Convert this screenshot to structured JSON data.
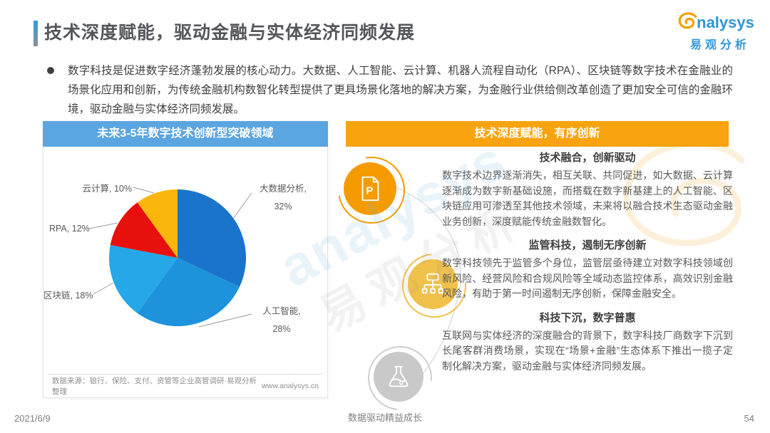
{
  "page": {
    "title": "技术深度赋能，驱动金融与实体经济同频发展",
    "bullet": "数字科技是促进数字经济蓬勃发展的核心动力。大数据、人工智能、云计算、机器人流程自动化（RPA）、区块链等数字技术在金融业的场景化应用和创新，为传统金融机构数智化转型提供了更具场景化落地的解决方案，为金融行业供给侧改革创造了更加安全可信的金融环境，驱动金融与实体经济同频发展。",
    "footer": {
      "date": "2021/6/9",
      "slogan": "数据驱动精益成长",
      "page_number": "54"
    }
  },
  "logo": {
    "brand_rest": "nalysys",
    "brand_cn": "易观分析"
  },
  "left_panel": {
    "header": "未来3-5年数字技术创新型突破领域",
    "source": "数据来源：银行、保险、支付、资管等企业高管调研·易观分析整理",
    "website": "www.analysys.cn"
  },
  "chart_data": {
    "type": "pie",
    "title": "未来3-5年数字技术创新型突破领域",
    "labels": [
      "大数据分析",
      "人工智能",
      "区块链",
      "RPA",
      "云计算"
    ],
    "values": [
      32,
      28,
      18,
      12,
      10
    ],
    "unit": "%",
    "colors": [
      "#1b74cc",
      "#1e93dc",
      "#25a7e8",
      "#e8100c",
      "#fbb60b"
    ],
    "legend_position": "outside-labels",
    "start_angle_deg": 0,
    "direction": "clockwise"
  },
  "right_panel": {
    "header": "技术深度赋能，有序创新",
    "sections": [
      {
        "icon": "document-p-icon",
        "heading": "技术融合，创新驱动",
        "body": "数字技术边界逐渐消失，相互关联、共同促进，如大数据、云计算逐渐成为数字新基础设施，而搭载在数字新基建上的人工智能、区块链应用可渗透至其他技术领域，未来将以融合技术生态驱动金融业务创新，深度赋能传统金融数智化。"
      },
      {
        "icon": "org-chart-icon",
        "heading": "监管科技，遏制无序创新",
        "body": "数字科技领先于监管多个身位，监管层亟待建立对数字科技领域创新风险、经营风险和合规风险等全域动态监控体系，高效识别金融风险，有助于第一时间遏制无序创新，保障金融安全。"
      },
      {
        "icon": "flask-icon",
        "heading": "科技下沉，数字普惠",
        "body": "互联网与实体经济的深度融合的背景下，数字科技厂商数字下沉到长尾客群消费场景，实现在“场景+金融”生态体系下推出一揽子定制化解决方案，驱动金融与实体经济同频发展。"
      }
    ]
  },
  "watermark": {
    "text_en": "analysys",
    "text_cn": "易观分析"
  },
  "colors": {
    "left_header_bg": "#5ba5e0",
    "right_header_bg": "#f8a30f",
    "icon1_bg": "#f59b00",
    "icon2_bg": "#f0c14b",
    "icon3_bg": "#c9c9c9",
    "title_text": "#55565a",
    "body_text": "#595959"
  }
}
